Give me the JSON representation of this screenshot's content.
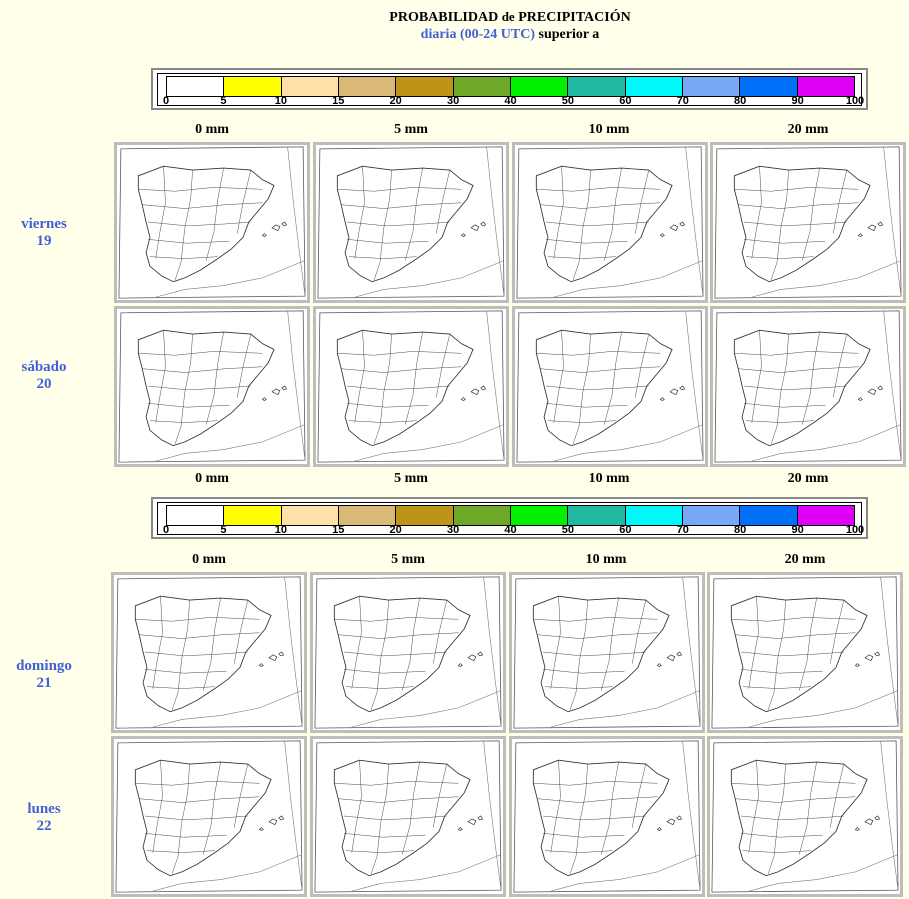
{
  "header": {
    "title_main": "PROBABILIDAD",
    "title_de": "de",
    "title_end": "PRECIPITACIÓN",
    "subtitle_range": "diaria (00-24 UTC)",
    "subtitle_rest": "superior a"
  },
  "legend": {
    "ticks": [
      "0",
      "5",
      "10",
      "15",
      "20",
      "30",
      "40",
      "50",
      "60",
      "70",
      "80",
      "90",
      "100"
    ],
    "colors": [
      "#ffffff",
      "#ffff00",
      "#ffe0a8",
      "#dab878",
      "#be9418",
      "#6ea828",
      "#00f000",
      "#20b8a0",
      "#00f8f8",
      "#78a8f8",
      "#0070f8",
      "#e000f8"
    ]
  },
  "thresholds": [
    "0 mm",
    "5 mm",
    "10 mm",
    "20 mm"
  ],
  "days": [
    {
      "name": "viernes",
      "num": "19"
    },
    {
      "name": "sábado",
      "num": "20"
    },
    {
      "name": "domingo",
      "num": "21"
    },
    {
      "name": "lunes",
      "num": "22"
    }
  ]
}
